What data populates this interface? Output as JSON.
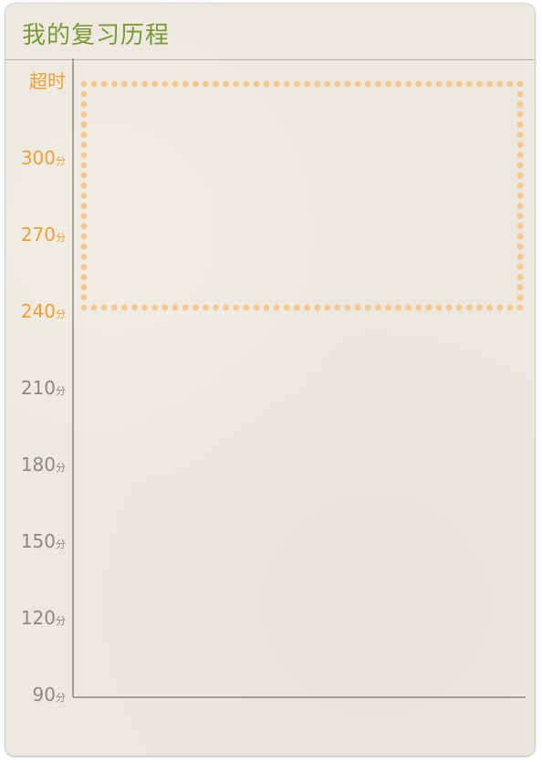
{
  "title": "我的复习历程",
  "chart_data": {
    "type": "line",
    "title": "我的复习历程",
    "y_ticks": [
      {
        "value": 330,
        "text": "超时",
        "unit": ""
      },
      {
        "value": 300,
        "text": "300",
        "unit": "分"
      },
      {
        "value": 270,
        "text": "270",
        "unit": "分"
      },
      {
        "value": 240,
        "text": "240",
        "unit": "分"
      },
      {
        "value": 210,
        "text": "210",
        "unit": "分"
      },
      {
        "value": 180,
        "text": "180",
        "unit": "分"
      },
      {
        "value": 150,
        "text": "150",
        "unit": "分"
      },
      {
        "value": 120,
        "text": "120",
        "unit": "分"
      },
      {
        "value": 90,
        "text": "90",
        "unit": "分"
      }
    ],
    "ylim": [
      90,
      330
    ],
    "highlight_range": [
      240,
      330
    ],
    "series": [],
    "colors": {
      "highlight": "#f0a030",
      "normal": "#8a8a80",
      "axis": "#8a877e",
      "dots": "#f7c88a"
    }
  }
}
